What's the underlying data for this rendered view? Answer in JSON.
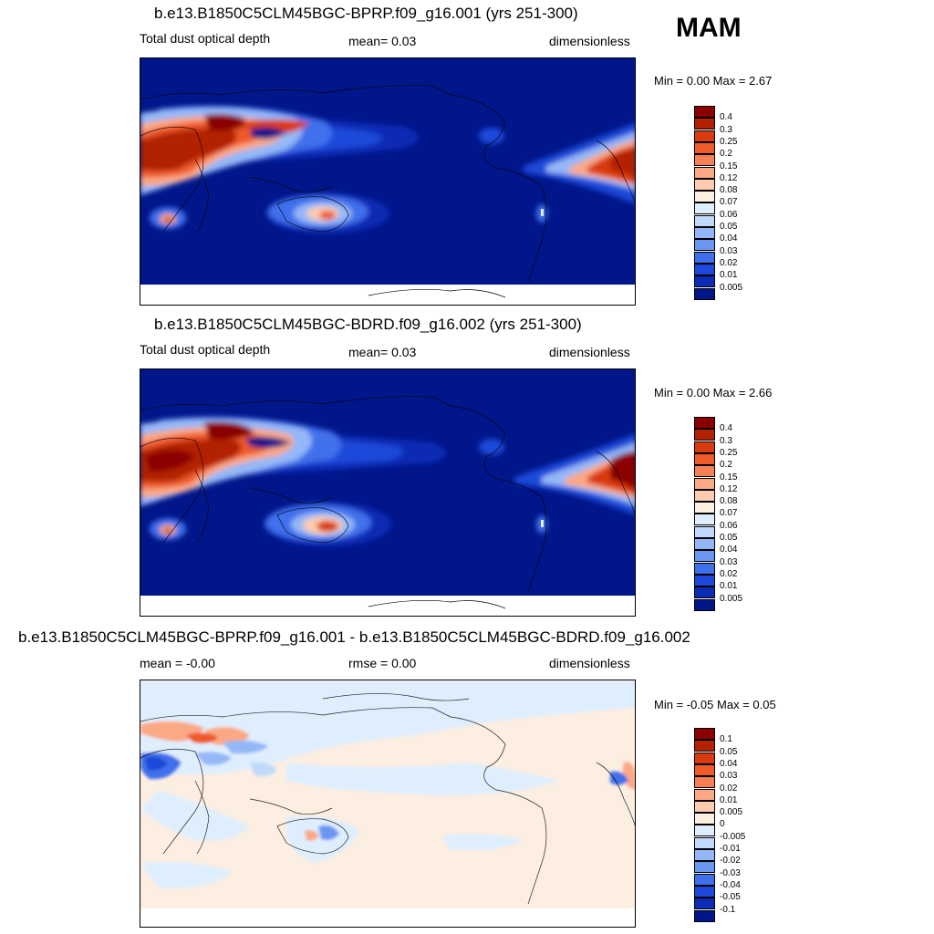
{
  "season": "MAM",
  "panels": [
    {
      "title": "b.e13.B1850C5CLM45BGC-BPRP.f09_g16.001 (yrs 251-300)",
      "left_text": "Total dust optical depth",
      "center_text": "mean=   0.03",
      "right_text": "dimensionless",
      "minmax": "Min =    0.00 Max =    2.67"
    },
    {
      "title": "b.e13.B1850C5CLM45BGC-BDRD.f09_g16.002 (yrs 251-300)",
      "left_text": "Total dust optical depth",
      "center_text": "mean=   0.03",
      "right_text": "dimensionless",
      "minmax": "Min =    0.00 Max =    2.66"
    },
    {
      "title": "b.e13.B1850C5CLM45BGC-BPRP.f09_g16.001 - b.e13.B1850C5CLM45BGC-BDRD.f09_g16.002",
      "left_text": "mean =  -0.00",
      "center_text": "rmse =   0.00",
      "right_text": "dimensionless",
      "minmax": "Min =  -0.05 Max =    0.05"
    }
  ],
  "colorbar_abs": {
    "labels": [
      "0.4",
      "0.3",
      "0.25",
      "0.2",
      "0.15",
      "0.12",
      "0.08",
      "0.07",
      "0.06",
      "0.05",
      "0.04",
      "0.03",
      "0.02",
      "0.01",
      "0.005"
    ],
    "colors": [
      "#8b0000",
      "#b22200",
      "#d93a10",
      "#ef5a2a",
      "#f77f55",
      "#fba884",
      "#fdccb0",
      "#fdeee2",
      "#dfeefd",
      "#c0d9fb",
      "#94b8f7",
      "#6a96f1",
      "#3f6feb",
      "#1e48d9",
      "#0c2cb5",
      "#00168a"
    ]
  },
  "colorbar_diff": {
    "labels": [
      "0.1",
      "0.05",
      "0.04",
      "0.03",
      "0.02",
      "0.01",
      "0.005",
      "0",
      "-0.005",
      "-0.01",
      "-0.02",
      "-0.03",
      "-0.04",
      "-0.05",
      "-0.1"
    ],
    "colors": [
      "#8b0000",
      "#b22200",
      "#d93a10",
      "#ef5a2a",
      "#f77f55",
      "#fba884",
      "#fdccb0",
      "#fdeee2",
      "#dfeefd",
      "#c0d9fb",
      "#94b8f7",
      "#6a96f1",
      "#3f6feb",
      "#1e48d9",
      "#0c2cb5",
      "#00168a"
    ]
  }
}
